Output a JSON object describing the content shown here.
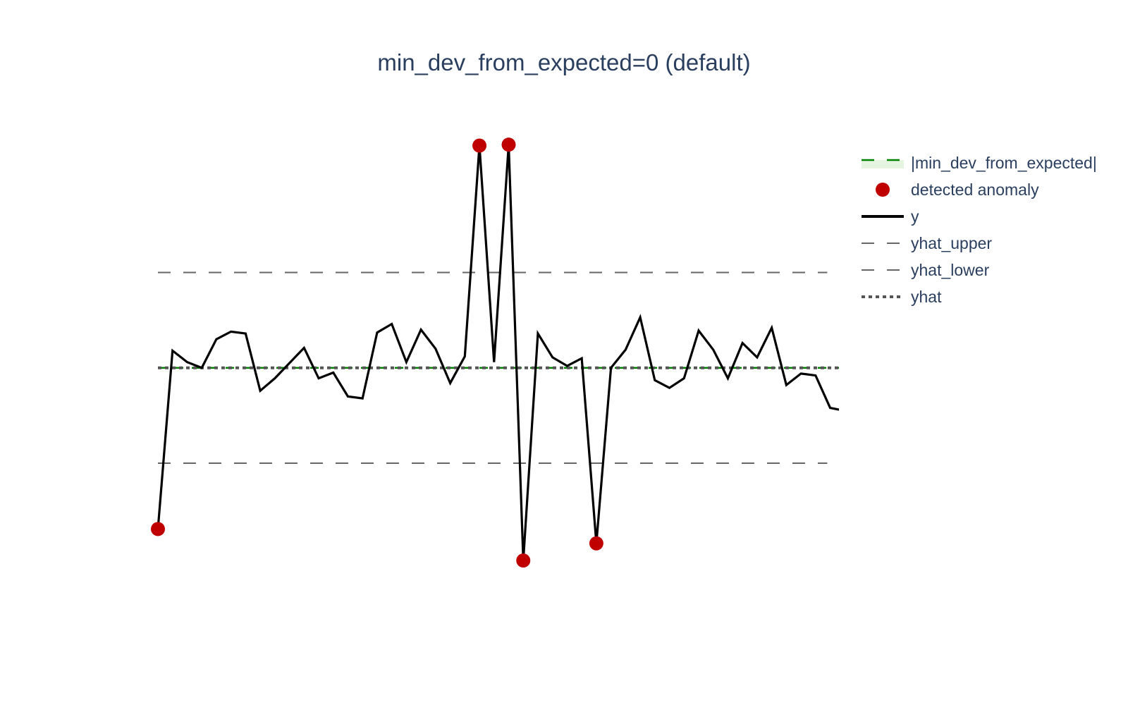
{
  "chart_data": {
    "type": "line",
    "title": "min_dev_from_expected=0 (default)",
    "xlabel": "",
    "ylabel": "",
    "grid": false,
    "legend_position": "top-right",
    "x": [
      0,
      1,
      2,
      3,
      4,
      5,
      6,
      7,
      8,
      9,
      10,
      11,
      12,
      13,
      14,
      15,
      16,
      17,
      18,
      19,
      20,
      21,
      22,
      23,
      24,
      25,
      26,
      27,
      28,
      29,
      30,
      31,
      32,
      33,
      34,
      35,
      36,
      37,
      38,
      39,
      40,
      41,
      42,
      43,
      44,
      45,
      46,
      47
    ],
    "series": [
      {
        "name": "y",
        "role": "observed",
        "color": "#000000",
        "values": [
          -1.69,
          0.18,
          0.06,
          0.0,
          0.3,
          0.38,
          0.36,
          -0.24,
          -0.11,
          0.05,
          0.21,
          -0.11,
          -0.05,
          -0.3,
          -0.32,
          0.37,
          0.46,
          0.06,
          0.4,
          0.2,
          -0.16,
          0.12,
          2.33,
          0.06,
          2.34,
          -2.02,
          0.36,
          0.11,
          0.02,
          0.1,
          -1.84,
          0.0,
          0.19,
          0.53,
          -0.13,
          -0.21,
          -0.11,
          0.39,
          0.19,
          -0.11,
          0.26,
          0.11,
          0.42,
          -0.18,
          -0.06,
          -0.08,
          -0.42,
          -0.45
        ]
      },
      {
        "name": "yhat_upper",
        "style": "dash",
        "color": "#666666",
        "value": 1.0
      },
      {
        "name": "yhat_lower",
        "style": "dash",
        "color": "#666666",
        "value": -1.0
      },
      {
        "name": "yhat",
        "style": "dot",
        "color": "#555555",
        "value": 0.0
      },
      {
        "name": "|min_dev_from_expected|",
        "style": "dash",
        "color": "#008000",
        "fill": "#e5f5e0",
        "value": 0.0
      },
      {
        "name": "detected anomaly",
        "style": "markers",
        "color": "#c00000",
        "points": [
          {
            "x": 0,
            "y": -1.69
          },
          {
            "x": 22,
            "y": 2.33
          },
          {
            "x": 24,
            "y": 2.34
          },
          {
            "x": 25,
            "y": -2.02
          },
          {
            "x": 30,
            "y": -1.84
          }
        ]
      }
    ],
    "xlim": [
      0,
      46.6
    ],
    "ylim": [
      -2.5,
      2.6
    ]
  },
  "legend": {
    "items": [
      {
        "label": "|min_dev_from_expected|",
        "symbol": "band-dash",
        "color": "#008000",
        "fill": "#e5f5e0"
      },
      {
        "label": "detected anomaly",
        "symbol": "marker",
        "color": "#c00000"
      },
      {
        "label": "y",
        "symbol": "solid",
        "color": "#000000"
      },
      {
        "label": "yhat_upper",
        "symbol": "dash",
        "color": "#666666"
      },
      {
        "label": "yhat_lower",
        "symbol": "dash",
        "color": "#666666"
      },
      {
        "label": "yhat",
        "symbol": "dot",
        "color": "#555555"
      }
    ]
  }
}
